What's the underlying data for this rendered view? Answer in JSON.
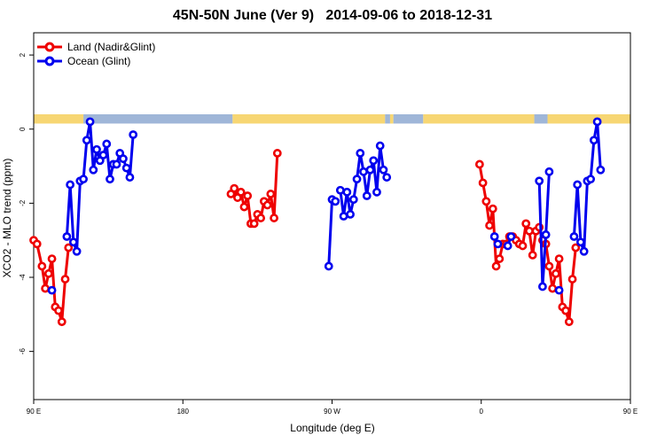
{
  "chart_data": {
    "type": "line",
    "title": "45N-50N June (Ver 9)   2014-09-06 to 2018-12-31",
    "xlabel": "Longitude (deg E)",
    "ylabel": "XCO2 - MLO trend (ppm)",
    "xlim": [
      90,
      450
    ],
    "ylim": [
      -7.3,
      2.6
    ],
    "x_ticks": [
      {
        "value": 90,
        "label": "90 E"
      },
      {
        "value": 180,
        "label": "180"
      },
      {
        "value": 270,
        "label": "90 W"
      },
      {
        "value": 360,
        "label": "0"
      },
      {
        "value": 450,
        "label": "90 E"
      },
      {
        "value": 540,
        "label": "180"
      }
    ],
    "y_ticks": [
      2,
      0,
      -2,
      -4,
      -6
    ],
    "legend_position": "top-left",
    "colors": {
      "land": "#ee0000",
      "ocean": "#0000ee",
      "land_strip": "#f7d673",
      "ocean_strip": "#9fb6d8"
    },
    "land_ocean_strip": [
      {
        "from": 90,
        "to": 120,
        "type": "land"
      },
      {
        "from": 120,
        "to": 210,
        "type": "ocean"
      },
      {
        "from": 210,
        "to": 302,
        "type": "land"
      },
      {
        "from": 302,
        "to": 305,
        "type": "ocean"
      },
      {
        "from": 305,
        "to": 307,
        "type": "land"
      },
      {
        "from": 307,
        "to": 325,
        "type": "ocean"
      },
      {
        "from": 325,
        "to": 392,
        "type": "land"
      },
      {
        "from": 392,
        "to": 400,
        "type": "ocean"
      },
      {
        "from": 400,
        "to": 450,
        "type": "land"
      },
      {
        "from": 450,
        "to": 480,
        "type": "land"
      },
      {
        "from": 480,
        "to": 570,
        "type": "ocean"
      },
      {
        "from": 570,
        "to": 630,
        "type": "land"
      }
    ],
    "series": [
      {
        "name": "Land (Nadir&Glint)",
        "color": "#ee0000",
        "segments": [
          [
            [
              90,
              -3.0
            ],
            [
              92,
              -3.1
            ],
            [
              95,
              -3.7
            ],
            [
              97,
              -4.3
            ],
            [
              99,
              -3.9
            ],
            [
              101,
              -3.5
            ],
            [
              103,
              -4.8
            ],
            [
              105,
              -4.9
            ],
            [
              107,
              -5.2
            ],
            [
              109,
              -4.05
            ],
            [
              111,
              -3.2
            ]
          ],
          [
            [
              209,
              -1.75
            ],
            [
              211,
              -1.6
            ],
            [
              213,
              -1.85
            ],
            [
              215,
              -1.7
            ],
            [
              217,
              -2.1
            ],
            [
              219,
              -1.8
            ],
            [
              221,
              -2.55
            ],
            [
              223,
              -2.55
            ],
            [
              225,
              -2.3
            ],
            [
              227,
              -2.4
            ],
            [
              229,
              -1.95
            ],
            [
              231,
              -2.05
            ],
            [
              233,
              -1.75
            ],
            [
              235,
              -2.4
            ],
            [
              237,
              -0.65
            ]
          ],
          [
            [
              359,
              -0.95
            ],
            [
              361,
              -1.45
            ],
            [
              363,
              -1.95
            ],
            [
              365,
              -2.6
            ],
            [
              367,
              -2.15
            ],
            [
              369,
              -3.7
            ],
            [
              371,
              -3.5
            ],
            [
              373,
              -3.1
            ],
            [
              375,
              -3.1
            ],
            [
              377,
              -2.9
            ],
            [
              379,
              -2.9
            ],
            [
              381,
              -3.0
            ],
            [
              383,
              -3.1
            ],
            [
              385,
              -3.15
            ],
            [
              387,
              -2.55
            ],
            [
              389,
              -2.75
            ],
            [
              391,
              -3.4
            ],
            [
              393,
              -2.75
            ],
            [
              395,
              -2.65
            ],
            [
              397,
              -3.0
            ],
            [
              399,
              -3.1
            ],
            [
              401,
              -3.7
            ],
            [
              403,
              -4.3
            ],
            [
              405,
              -3.9
            ],
            [
              407,
              -3.5
            ],
            [
              409,
              -4.8
            ],
            [
              411,
              -4.9
            ],
            [
              413,
              -5.2
            ],
            [
              415,
              -4.05
            ],
            [
              417,
              -3.2
            ]
          ]
        ]
      },
      {
        "name": "Ocean (Glint)",
        "color": "#0000ee",
        "segments": [
          [
            [
              101,
              -4.35
            ]
          ],
          [
            [
              110,
              -2.9
            ],
            [
              112,
              -1.5
            ],
            [
              114,
              -3.05
            ],
            [
              116,
              -3.3
            ],
            [
              118,
              -1.4
            ],
            [
              120,
              -1.35
            ],
            [
              122,
              -0.3
            ],
            [
              124,
              0.2
            ],
            [
              126,
              -1.1
            ],
            [
              128,
              -0.55
            ],
            [
              130,
              -0.85
            ],
            [
              132,
              -0.7
            ],
            [
              134,
              -0.4
            ],
            [
              136,
              -1.35
            ],
            [
              138,
              -0.95
            ],
            [
              140,
              -0.95
            ],
            [
              142,
              -0.65
            ],
            [
              144,
              -0.8
            ],
            [
              146,
              -1.05
            ],
            [
              148,
              -1.3
            ],
            [
              150,
              -0.15
            ]
          ],
          [
            [
              268,
              -3.7
            ],
            [
              270,
              -1.9
            ],
            [
              272,
              -1.95
            ]
          ],
          [
            [
              275,
              -1.65
            ],
            [
              277,
              -2.35
            ],
            [
              279,
              -1.7
            ],
            [
              281,
              -2.3
            ],
            [
              283,
              -1.9
            ],
            [
              285,
              -1.35
            ],
            [
              287,
              -0.65
            ],
            [
              289,
              -1.15
            ],
            [
              291,
              -1.8
            ],
            [
              293,
              -1.1
            ],
            [
              295,
              -0.85
            ],
            [
              297,
              -1.7
            ],
            [
              299,
              -0.45
            ],
            [
              301,
              -1.1
            ],
            [
              303,
              -1.3
            ]
          ],
          [
            [
              368,
              -2.9
            ],
            [
              370,
              -3.1
            ]
          ],
          [
            [
              376,
              -3.15
            ],
            [
              378,
              -2.9
            ]
          ],
          [
            [
              395,
              -1.4
            ],
            [
              397,
              -4.25
            ],
            [
              399,
              -2.85
            ],
            [
              401,
              -1.15
            ]
          ],
          [
            [
              407,
              -4.35
            ]
          ],
          [
            [
              416,
              -2.9
            ],
            [
              418,
              -1.5
            ],
            [
              420,
              -3.05
            ],
            [
              422,
              -3.3
            ],
            [
              424,
              -1.4
            ],
            [
              426,
              -1.35
            ],
            [
              428,
              -0.3
            ],
            [
              430,
              0.2
            ],
            [
              432,
              -1.1
            ]
          ]
        ]
      }
    ]
  }
}
